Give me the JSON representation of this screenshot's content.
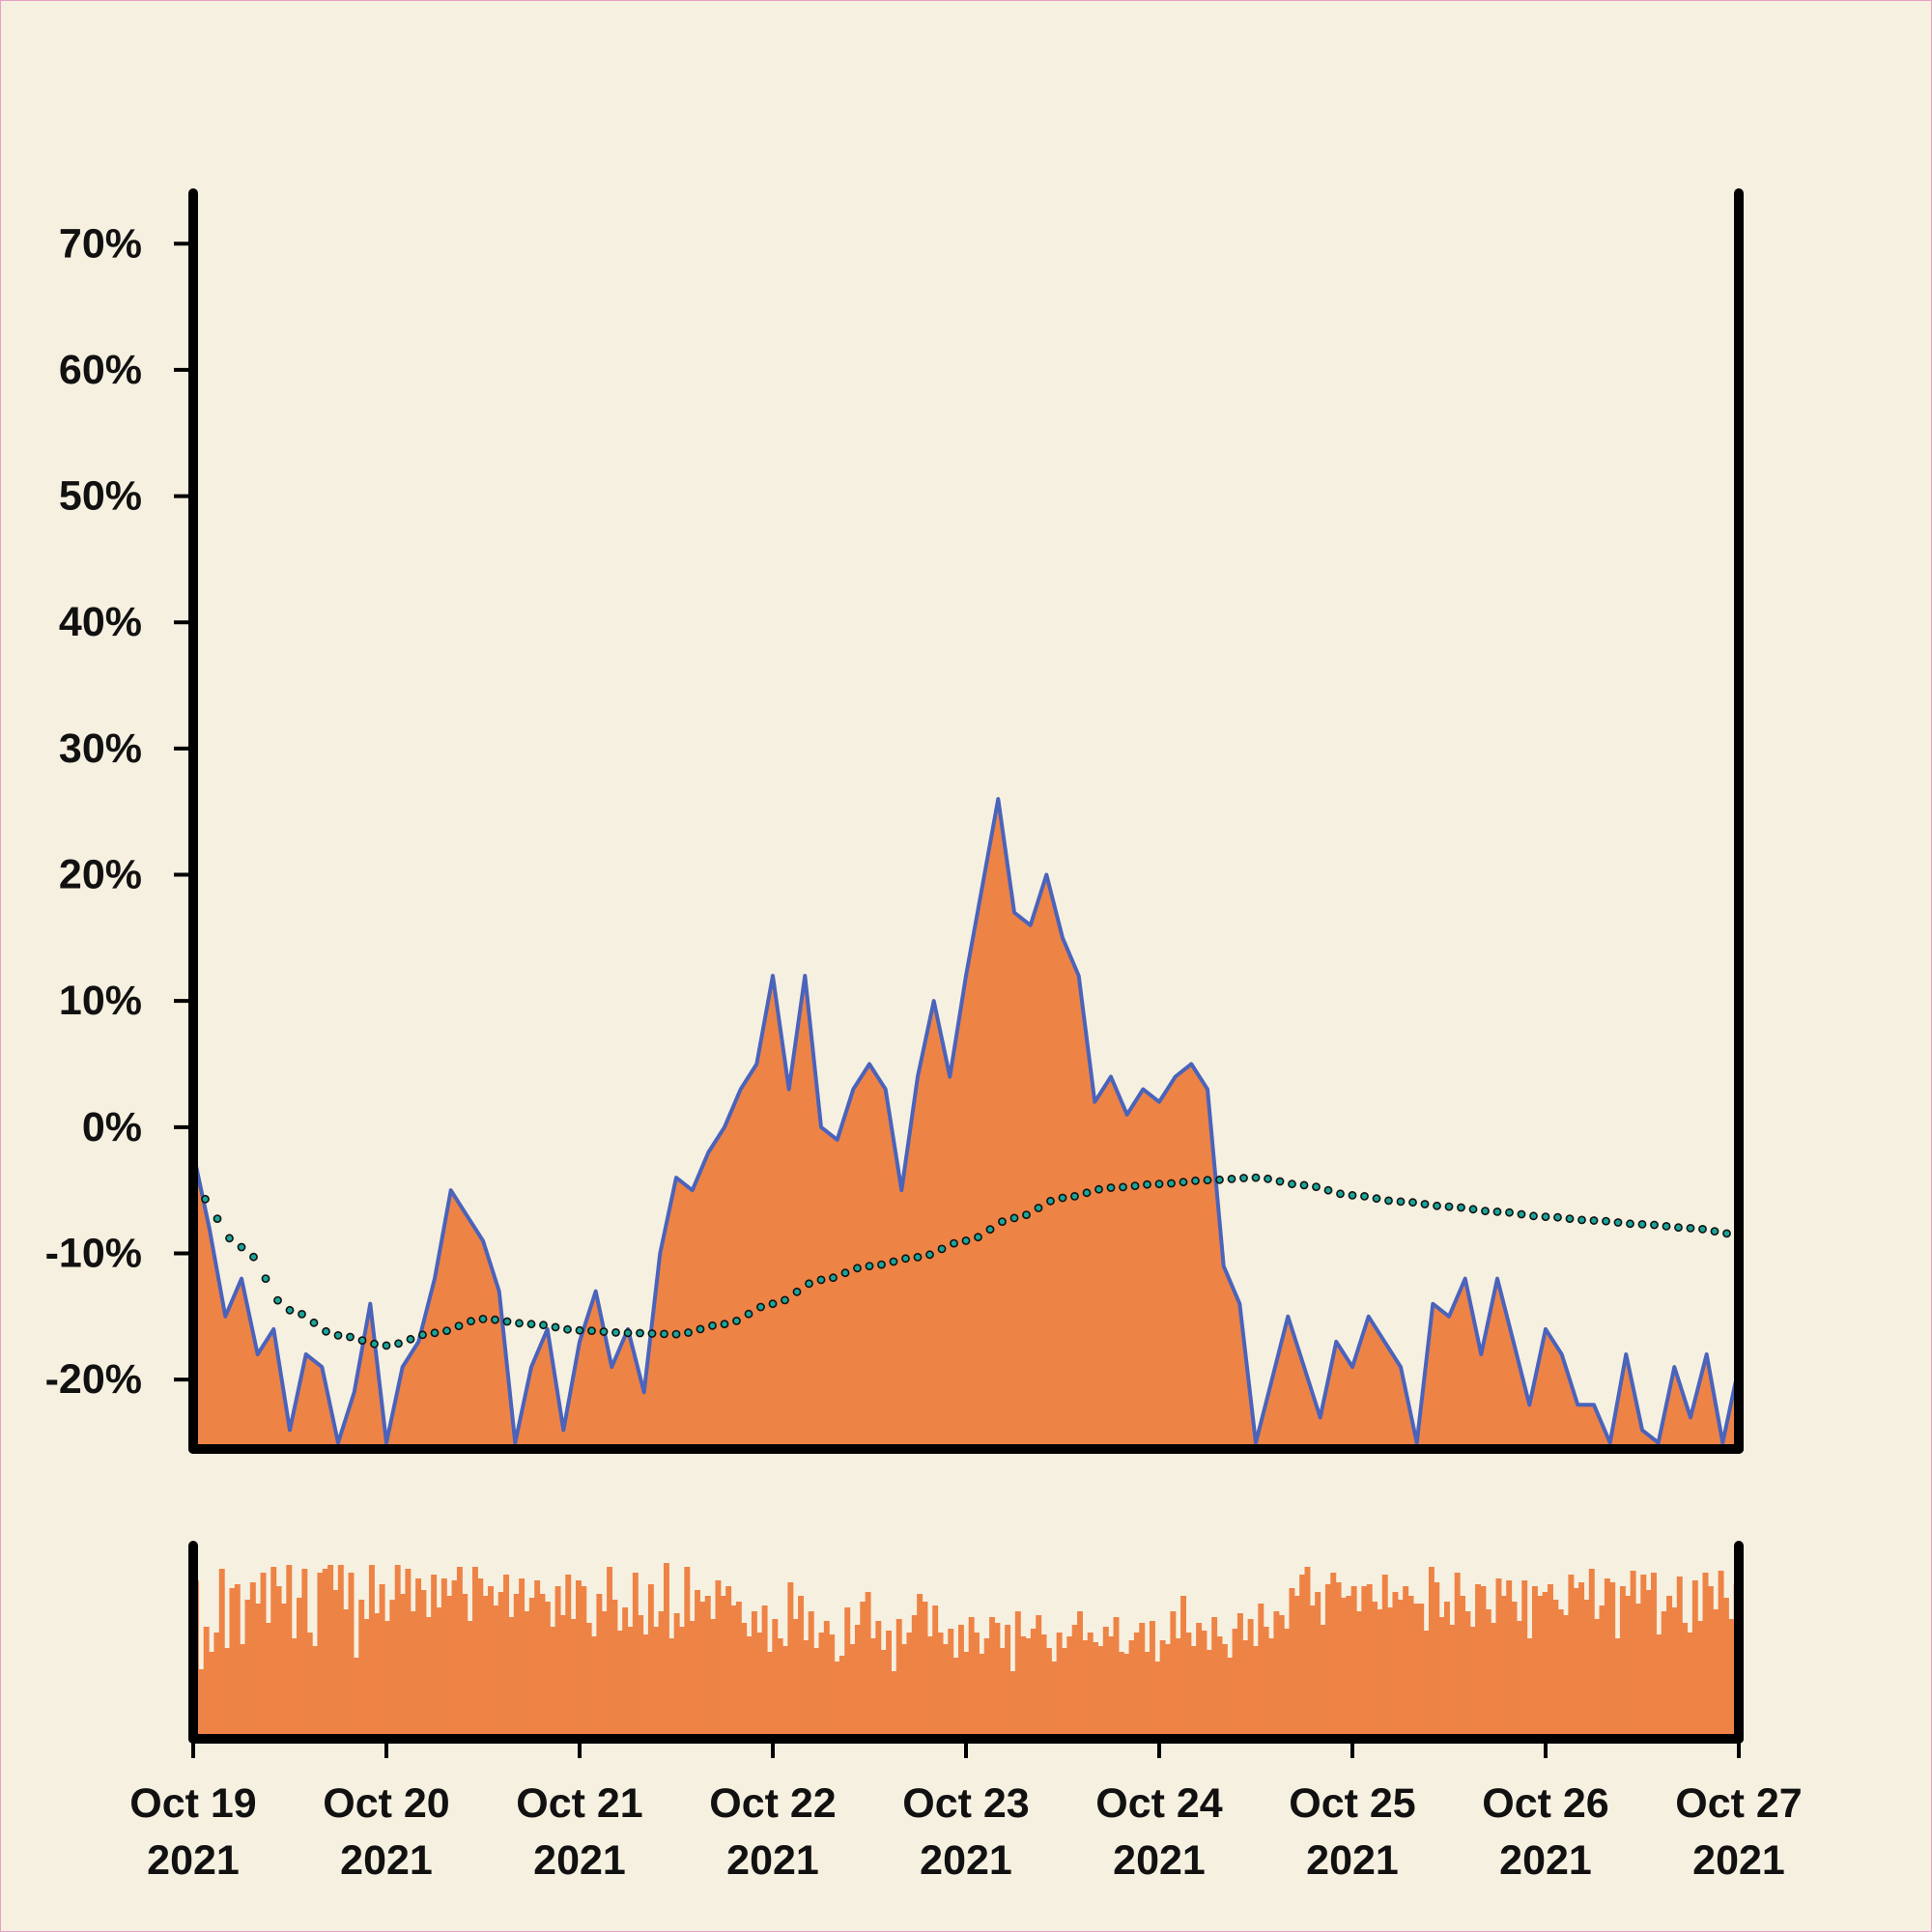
{
  "colors": {
    "background": "#f6f0e0",
    "area_fill": "#ee8346",
    "line": "#4a63bb",
    "trend_dots": "#1aa59a",
    "volume_bars": "#ee8346",
    "axis": "#000000",
    "border": "#e6a0c4"
  },
  "chart_data": [
    {
      "type": "area",
      "title": "",
      "xlabel": "",
      "ylabel": "",
      "grid": false,
      "legend": "none",
      "xlim": [
        "2021-10-19",
        "2021-10-27"
      ],
      "ylim": [
        -25.5,
        74
      ],
      "y_tick_labels": [
        "70%",
        "60%",
        "50%",
        "40%",
        "30%",
        "20%",
        "10%",
        "0%",
        "-10%",
        "-20%"
      ],
      "y_tick_values": [
        70,
        60,
        50,
        40,
        30,
        20,
        10,
        0,
        -10,
        -20
      ],
      "x_tick_labels": [
        [
          "Oct 19",
          "2021"
        ],
        [
          "Oct 20",
          "2021"
        ],
        [
          "Oct 21",
          "2021"
        ],
        [
          "Oct 22",
          "2021"
        ],
        [
          "Oct 23",
          "2021"
        ],
        [
          "Oct 24",
          "2021"
        ],
        [
          "Oct 25",
          "2021"
        ],
        [
          "Oct 26",
          "2021"
        ],
        [
          "Oct 27",
          "2021"
        ]
      ],
      "series": [
        {
          "type": "area",
          "x": [
            "2021-10-19 00:00",
            "2021-10-19 02:00",
            "2021-10-19 04:00",
            "2021-10-19 06:00",
            "2021-10-19 08:00",
            "2021-10-19 10:00",
            "2021-10-19 12:00",
            "2021-10-19 14:00",
            "2021-10-19 16:00",
            "2021-10-19 18:00",
            "2021-10-19 20:00",
            "2021-10-19 22:00",
            "2021-10-20 00:00",
            "2021-10-20 02:00",
            "2021-10-20 04:00",
            "2021-10-20 06:00",
            "2021-10-20 08:00",
            "2021-10-20 10:00",
            "2021-10-20 12:00",
            "2021-10-20 14:00",
            "2021-10-20 16:00",
            "2021-10-20 18:00",
            "2021-10-20 20:00",
            "2021-10-20 22:00",
            "2021-10-21 00:00",
            "2021-10-21 02:00",
            "2021-10-21 04:00",
            "2021-10-21 06:00",
            "2021-10-21 08:00",
            "2021-10-21 10:00",
            "2021-10-21 12:00",
            "2021-10-21 14:00",
            "2021-10-21 16:00",
            "2021-10-21 18:00",
            "2021-10-21 20:00",
            "2021-10-21 22:00",
            "2021-10-22 00:00",
            "2021-10-22 02:00",
            "2021-10-22 04:00",
            "2021-10-22 06:00",
            "2021-10-22 08:00",
            "2021-10-22 10:00",
            "2021-10-22 12:00",
            "2021-10-22 14:00",
            "2021-10-22 16:00",
            "2021-10-22 18:00",
            "2021-10-22 20:00",
            "2021-10-22 22:00",
            "2021-10-23 00:00",
            "2021-10-23 02:00",
            "2021-10-23 04:00",
            "2021-10-23 06:00",
            "2021-10-23 08:00",
            "2021-10-23 10:00",
            "2021-10-23 12:00",
            "2021-10-23 14:00",
            "2021-10-23 16:00",
            "2021-10-23 18:00",
            "2021-10-23 20:00",
            "2021-10-23 22:00",
            "2021-10-24 00:00",
            "2021-10-24 02:00",
            "2021-10-24 04:00",
            "2021-10-24 06:00",
            "2021-10-24 08:00",
            "2021-10-24 10:00",
            "2021-10-24 12:00",
            "2021-10-24 14:00",
            "2021-10-24 16:00",
            "2021-10-24 18:00",
            "2021-10-24 20:00",
            "2021-10-24 22:00",
            "2021-10-25 00:00",
            "2021-10-25 02:00",
            "2021-10-25 04:00",
            "2021-10-25 06:00",
            "2021-10-25 08:00",
            "2021-10-25 10:00",
            "2021-10-25 12:00",
            "2021-10-25 14:00",
            "2021-10-25 16:00",
            "2021-10-25 18:00",
            "2021-10-25 20:00",
            "2021-10-25 22:00",
            "2021-10-26 00:00",
            "2021-10-26 02:00",
            "2021-10-26 04:00",
            "2021-10-26 06:00",
            "2021-10-26 08:00",
            "2021-10-26 10:00",
            "2021-10-26 12:00",
            "2021-10-26 14:00",
            "2021-10-26 16:00",
            "2021-10-26 18:00",
            "2021-10-26 20:00",
            "2021-10-26 22:00",
            "2021-10-27 00:00"
          ],
          "y": [
            -2,
            -8,
            -15,
            -12,
            -18,
            -16,
            -24,
            -18,
            -19,
            -25,
            -21,
            -14,
            -25,
            -19,
            -17,
            -12,
            -5,
            -7,
            -9,
            -13,
            -25,
            -19,
            -16,
            -24,
            -17,
            -13,
            -19,
            -16,
            -21,
            -10,
            -4,
            -5,
            -2,
            0,
            3,
            5,
            12,
            3,
            12,
            0,
            -1,
            3,
            5,
            3,
            -5,
            4,
            10,
            4,
            12,
            19,
            26,
            17,
            16,
            20,
            15,
            12,
            2,
            4,
            1,
            3,
            2,
            4,
            5,
            3,
            -11,
            -14,
            -25,
            -20,
            -15,
            -19,
            -23,
            -17,
            -19,
            -15,
            -17,
            -19,
            -25,
            -14,
            -15,
            -12,
            -18,
            -12,
            -17,
            -22,
            -16,
            -18,
            -22,
            -22,
            -25,
            -18,
            -24,
            -25,
            -19,
            -23,
            -18,
            -25,
            -19
          ],
          "label": ""
        },
        {
          "type": "dotted-line",
          "x": [
            "2021-10-19 00:00",
            "2021-10-19 06:00",
            "2021-10-19 12:00",
            "2021-10-19 18:00",
            "2021-10-20 00:00",
            "2021-10-20 06:00",
            "2021-10-20 12:00",
            "2021-10-20 18:00",
            "2021-10-21 00:00",
            "2021-10-21 06:00",
            "2021-10-21 12:00",
            "2021-10-21 18:00",
            "2021-10-22 00:00",
            "2021-10-22 06:00",
            "2021-10-22 12:00",
            "2021-10-22 18:00",
            "2021-10-23 00:00",
            "2021-10-23 06:00",
            "2021-10-23 12:00",
            "2021-10-23 18:00",
            "2021-10-24 00:00",
            "2021-10-24 06:00",
            "2021-10-24 12:00",
            "2021-10-24 18:00",
            "2021-10-25 00:00",
            "2021-10-25 06:00",
            "2021-10-25 12:00",
            "2021-10-25 18:00",
            "2021-10-26 00:00",
            "2021-10-26 06:00",
            "2021-10-26 12:00",
            "2021-10-26 18:00",
            "2021-10-27 00:00"
          ],
          "y": [
            -5,
            -9.5,
            -14.5,
            -16.5,
            -17.3,
            -16.3,
            -15.2,
            -15.6,
            -16.1,
            -16.3,
            -16.4,
            -15.6,
            -14.0,
            -12.1,
            -11.0,
            -10.3,
            -9.0,
            -7.2,
            -5.6,
            -4.8,
            -4.5,
            -4.2,
            -4.0,
            -4.6,
            -5.4,
            -5.9,
            -6.3,
            -6.7,
            -7.1,
            -7.4,
            -7.7,
            -8.0,
            -8.5
          ],
          "label": ""
        }
      ]
    },
    {
      "type": "bar",
      "title": "",
      "xlabel": "",
      "ylabel": "",
      "xlim": [
        "2021-10-19",
        "2021-10-27"
      ],
      "ylim": [
        0,
        1
      ],
      "values": [
        0.82,
        0.36,
        0.58,
        0.45,
        0.55,
        0.88,
        0.47,
        0.78,
        0.8,
        0.49,
        0.72,
        0.81,
        0.7,
        0.86,
        0.6,
        0.89,
        0.79,
        0.7,
        0.9,
        0.52,
        0.73,
        0.88,
        0.55,
        0.48,
        0.86,
        0.88,
        0.9,
        0.77,
        0.9,
        0.67,
        0.86,
        0.42,
        0.72,
        0.62,
        0.9,
        0.65,
        0.8,
        0.61,
        0.72,
        0.9,
        0.75,
        0.88,
        0.66,
        0.83,
        0.77,
        0.63,
        0.85,
        0.68,
        0.83,
        0.74,
        0.82,
        0.89,
        0.75,
        0.61,
        0.89,
        0.83,
        0.74,
        0.79,
        0.69,
        0.76,
        0.85,
        0.63,
        0.75,
        0.83,
        0.66,
        0.73,
        0.82,
        0.75,
        0.71,
        0.58,
        0.79,
        0.64,
        0.85,
        0.62,
        0.82,
        0.79,
        0.6,
        0.53,
        0.75,
        0.66,
        0.89,
        0.72,
        0.56,
        0.68,
        0.58,
        0.86,
        0.64,
        0.54,
        0.8,
        0.58,
        0.66,
        0.91,
        0.52,
        0.65,
        0.58,
        0.89,
        0.61,
        0.77,
        0.71,
        0.74,
        0.62,
        0.82,
        0.74,
        0.79,
        0.69,
        0.71,
        0.6,
        0.53,
        0.66,
        0.55,
        0.69,
        0.45,
        0.62,
        0.52,
        0.48,
        0.81,
        0.62,
        0.74,
        0.51,
        0.66,
        0.47,
        0.55,
        0.61,
        0.54,
        0.4,
        0.43,
        0.68,
        0.49,
        0.59,
        0.71,
        0.76,
        0.52,
        0.61,
        0.46,
        0.56,
        0.35,
        0.62,
        0.49,
        0.55,
        0.64,
        0.75,
        0.71,
        0.53,
        0.69,
        0.55,
        0.49,
        0.57,
        0.42,
        0.59,
        0.45,
        0.63,
        0.55,
        0.44,
        0.52,
        0.63,
        0.6,
        0.47,
        0.59,
        0.35,
        0.66,
        0.53,
        0.52,
        0.57,
        0.64,
        0.54,
        0.47,
        0.4,
        0.55,
        0.47,
        0.53,
        0.59,
        0.66,
        0.51,
        0.55,
        0.5,
        0.48,
        0.58,
        0.53,
        0.63,
        0.45,
        0.44,
        0.51,
        0.55,
        0.6,
        0.45,
        0.61,
        0.4,
        0.51,
        0.49,
        0.66,
        0.52,
        0.74,
        0.55,
        0.48,
        0.6,
        0.56,
        0.46,
        0.63,
        0.53,
        0.49,
        0.42,
        0.57,
        0.65,
        0.51,
        0.62,
        0.48,
        0.7,
        0.58,
        0.52,
        0.66,
        0.64,
        0.57,
        0.78,
        0.74,
        0.85,
        0.89,
        0.69,
        0.76,
        0.59,
        0.8,
        0.86,
        0.81,
        0.73,
        0.74,
        0.79,
        0.66,
        0.79,
        0.8,
        0.71,
        0.67,
        0.85,
        0.68,
        0.76,
        0.72,
        0.79,
        0.74,
        0.7,
        0.7,
        0.56,
        0.89,
        0.81,
        0.63,
        0.71,
        0.59,
        0.86,
        0.74,
        0.66,
        0.58,
        0.8,
        0.79,
        0.67,
        0.6,
        0.83,
        0.74,
        0.82,
        0.71,
        0.61,
        0.82,
        0.52,
        0.79,
        0.74,
        0.76,
        0.8,
        0.72,
        0.67,
        0.64,
        0.85,
        0.78,
        0.81,
        0.72,
        0.88,
        0.62,
        0.69,
        0.83,
        0.81,
        0.52,
        0.79,
        0.74,
        0.87,
        0.7,
        0.85,
        0.77,
        0.86,
        0.54,
        0.66,
        0.74,
        0.68,
        0.84,
        0.6,
        0.55,
        0.82,
        0.61,
        0.86,
        0.79,
        0.67,
        0.87,
        0.73,
        0.62,
        0.8
      ]
    }
  ]
}
